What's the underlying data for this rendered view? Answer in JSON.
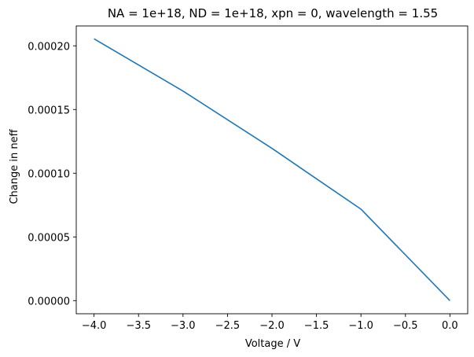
{
  "chart_data": {
    "type": "line",
    "title": "NA = 1e+18, ND = 1e+18, xpn = 0, wavelength = 1.55",
    "xlabel": "Voltage / V",
    "ylabel": "Change in neff",
    "xlim": [
      -4.2,
      0.2
    ],
    "ylim": [
      -1.03e-05,
      0.0002156
    ],
    "grid": false,
    "x_ticks": [
      -4.0,
      -3.5,
      -3.0,
      -2.5,
      -2.0,
      -1.5,
      -1.0,
      -0.5,
      0.0
    ],
    "x_tick_labels": [
      "−4.0",
      "−3.5",
      "−3.0",
      "−2.5",
      "−2.0",
      "−1.5",
      "−1.0",
      "−0.5",
      "0.0"
    ],
    "y_ticks": [
      0.0,
      5e-05,
      0.0001,
      0.00015,
      0.0002
    ],
    "y_tick_labels": [
      "0.00000",
      "0.00005",
      "0.00010",
      "0.00015",
      "0.00020"
    ],
    "series": [
      {
        "color": "#1f77b4",
        "x": [
          -4.0,
          -3.0,
          -2.0,
          -1.0,
          0.0
        ],
        "y": [
          0.0002055,
          0.0001645,
          0.0001195,
          7.18e-05,
          0.0
        ]
      }
    ]
  }
}
